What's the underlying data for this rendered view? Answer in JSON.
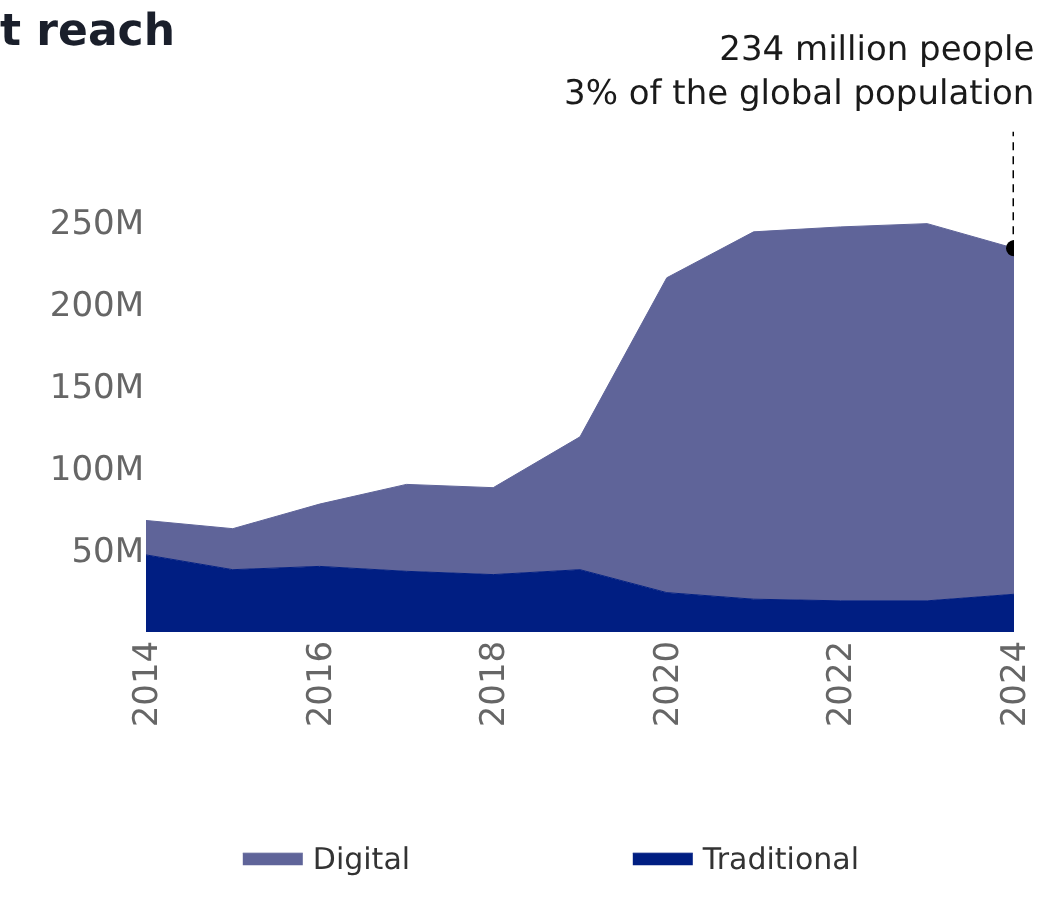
{
  "chart_data": {
    "type": "area",
    "title": "t reach",
    "stacked": true,
    "x": [
      2014,
      2015,
      2016,
      2017,
      2018,
      2019,
      2020,
      2021,
      2022,
      2023,
      2024
    ],
    "series": [
      {
        "name": "Traditional",
        "color": "#001e82",
        "values": [
          47,
          38,
          40,
          37,
          35,
          38,
          24,
          20,
          19,
          19,
          23
        ]
      },
      {
        "name": "Digital",
        "color": "#5f6499",
        "values": [
          21,
          25,
          38,
          53,
          53,
          81,
          192,
          224,
          228,
          230,
          211
        ]
      }
    ],
    "xlim": [
      2014,
      2024
    ],
    "xticks": [
      2014,
      2016,
      2018,
      2020,
      2022,
      2024
    ],
    "ylim": [
      0,
      250
    ],
    "yticks": [
      {
        "value": 50,
        "label": "50M"
      },
      {
        "value": 100,
        "label": "100M"
      },
      {
        "value": 150,
        "label": "150M"
      },
      {
        "value": 200,
        "label": "200M"
      },
      {
        "value": 250,
        "label": "250M"
      }
    ],
    "grid": false,
    "legend": "bottom",
    "marker": "none",
    "annotations": [
      {
        "text": "234 million people\n3% of the global population",
        "x": 2024,
        "y": 234
      }
    ]
  }
}
